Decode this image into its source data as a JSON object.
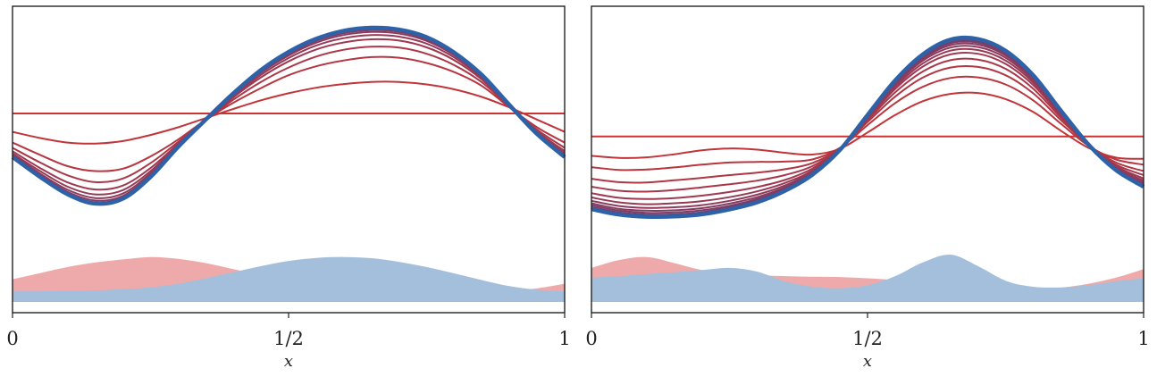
{
  "chart_data": [
    {
      "type": "line",
      "title": "",
      "xlabel": "x",
      "ylabel": "",
      "xlim": [
        0,
        1
      ],
      "ylim": [
        0,
        1
      ],
      "x_ticks": [
        "0",
        "1/2",
        "1"
      ],
      "grid": false,
      "legend": "none",
      "colors": {
        "start": "#cc3333",
        "end": "#2e62a8",
        "fill_start": "#eeaaaa",
        "fill_end": "#a3bfdb"
      },
      "x": [
        0,
        0.05,
        0.1,
        0.15,
        0.2,
        0.25,
        0.3,
        0.35,
        0.4,
        0.45,
        0.5,
        0.55,
        0.6,
        0.65,
        0.7,
        0.75,
        0.8,
        0.85,
        0.9,
        0.95,
        1
      ],
      "series": [
        {
          "values": [
            0.65,
            0.65,
            0.65,
            0.65,
            0.65,
            0.65,
            0.65,
            0.65,
            0.65,
            0.65,
            0.65,
            0.65,
            0.65,
            0.65,
            0.65,
            0.65,
            0.65,
            0.65,
            0.65,
            0.65,
            0.65
          ]
        },
        {
          "values": [
            0.59,
            0.57,
            0.555,
            0.552,
            0.56,
            0.58,
            0.605,
            0.635,
            0.665,
            0.693,
            0.716,
            0.734,
            0.746,
            0.753,
            0.753,
            0.745,
            0.729,
            0.704,
            0.67,
            0.63,
            0.59
          ]
        },
        {
          "values": [
            0.555,
            0.515,
            0.478,
            0.462,
            0.47,
            0.51,
            0.565,
            0.63,
            0.685,
            0.733,
            0.775,
            0.804,
            0.823,
            0.834,
            0.832,
            0.815,
            0.785,
            0.74,
            0.67,
            0.605,
            0.555
          ]
        },
        {
          "values": [
            0.538,
            0.49,
            0.448,
            0.426,
            0.438,
            0.488,
            0.557,
            0.627,
            0.695,
            0.753,
            0.8,
            0.836,
            0.858,
            0.868,
            0.865,
            0.845,
            0.808,
            0.752,
            0.672,
            0.597,
            0.538
          ]
        },
        {
          "values": [
            0.527,
            0.472,
            0.425,
            0.402,
            0.415,
            0.472,
            0.551,
            0.628,
            0.703,
            0.768,
            0.82,
            0.859,
            0.882,
            0.892,
            0.888,
            0.866,
            0.824,
            0.761,
            0.674,
            0.592,
            0.527
          ]
        },
        {
          "values": [
            0.52,
            0.462,
            0.411,
            0.386,
            0.4,
            0.462,
            0.548,
            0.628,
            0.707,
            0.776,
            0.831,
            0.872,
            0.896,
            0.906,
            0.901,
            0.878,
            0.833,
            0.766,
            0.675,
            0.589,
            0.52
          ]
        },
        {
          "values": [
            0.516,
            0.454,
            0.401,
            0.374,
            0.389,
            0.455,
            0.545,
            0.629,
            0.711,
            0.783,
            0.839,
            0.881,
            0.906,
            0.916,
            0.911,
            0.887,
            0.84,
            0.77,
            0.676,
            0.587,
            0.516
          ]
        },
        {
          "values": [
            0.512,
            0.449,
            0.394,
            0.366,
            0.381,
            0.45,
            0.543,
            0.629,
            0.713,
            0.787,
            0.844,
            0.887,
            0.912,
            0.922,
            0.917,
            0.892,
            0.844,
            0.773,
            0.677,
            0.585,
            0.512
          ]
        },
        {
          "values": [
            0.51,
            0.445,
            0.389,
            0.36,
            0.376,
            0.446,
            0.542,
            0.629,
            0.715,
            0.79,
            0.848,
            0.891,
            0.917,
            0.927,
            0.921,
            0.896,
            0.847,
            0.775,
            0.677,
            0.584,
            0.51
          ]
        },
        {
          "values": [
            0.508,
            0.443,
            0.386,
            0.356,
            0.372,
            0.443,
            0.541,
            0.63,
            0.716,
            0.792,
            0.851,
            0.894,
            0.92,
            0.93,
            0.924,
            0.899,
            0.849,
            0.776,
            0.678,
            0.583,
            0.508
          ]
        }
      ],
      "densities": [
        {
          "values": [
            0.075,
            0.095,
            0.115,
            0.13,
            0.14,
            0.148,
            0.142,
            0.128,
            0.108,
            0.088,
            0.07,
            0.055,
            0.043,
            0.035,
            0.03,
            0.027,
            0.027,
            0.03,
            0.036,
            0.045,
            0.06
          ]
        },
        {
          "values": [
            0.035,
            0.035,
            0.036,
            0.038,
            0.042,
            0.048,
            0.06,
            0.078,
            0.098,
            0.118,
            0.135,
            0.145,
            0.148,
            0.144,
            0.132,
            0.115,
            0.094,
            0.072,
            0.052,
            0.04,
            0.035
          ]
        }
      ]
    },
    {
      "type": "line",
      "title": "",
      "xlabel": "x",
      "ylabel": "",
      "xlim": [
        0,
        1
      ],
      "ylim": [
        0,
        1
      ],
      "x_ticks": [
        "0",
        "1/2",
        "1"
      ],
      "grid": false,
      "legend": "none",
      "colors": {
        "start": "#cc3333",
        "end": "#2e62a8",
        "fill_start": "#eeaaaa",
        "fill_end": "#a3bfdb"
      },
      "x": [
        0,
        0.05,
        0.1,
        0.15,
        0.2,
        0.25,
        0.3,
        0.35,
        0.4,
        0.45,
        0.5,
        0.55,
        0.6,
        0.65,
        0.7,
        0.75,
        0.8,
        0.85,
        0.9,
        0.95,
        1
      ],
      "series": [
        {
          "values": [
            0.575,
            0.575,
            0.575,
            0.575,
            0.575,
            0.575,
            0.575,
            0.575,
            0.575,
            0.575,
            0.575,
            0.575,
            0.575,
            0.575,
            0.575,
            0.575,
            0.575,
            0.575,
            0.575,
            0.575,
            0.575
          ]
        },
        {
          "values": [
            0.512,
            0.505,
            0.507,
            0.517,
            0.53,
            0.536,
            0.532,
            0.522,
            0.516,
            0.535,
            0.588,
            0.645,
            0.69,
            0.714,
            0.717,
            0.697,
            0.655,
            0.594,
            0.538,
            0.506,
            0.502
          ]
        },
        {
          "values": [
            0.475,
            0.466,
            0.467,
            0.474,
            0.483,
            0.49,
            0.492,
            0.493,
            0.5,
            0.538,
            0.612,
            0.684,
            0.737,
            0.766,
            0.768,
            0.745,
            0.693,
            0.617,
            0.545,
            0.5,
            0.483
          ]
        },
        {
          "values": [
            0.437,
            0.426,
            0.425,
            0.432,
            0.44,
            0.449,
            0.457,
            0.468,
            0.488,
            0.537,
            0.622,
            0.705,
            0.767,
            0.8,
            0.802,
            0.775,
            0.716,
            0.629,
            0.548,
            0.49,
            0.462
          ]
        },
        {
          "values": [
            0.411,
            0.398,
            0.395,
            0.4,
            0.409,
            0.419,
            0.431,
            0.449,
            0.478,
            0.536,
            0.628,
            0.719,
            0.787,
            0.824,
            0.826,
            0.796,
            0.731,
            0.637,
            0.548,
            0.483,
            0.449
          ]
        },
        {
          "values": [
            0.39,
            0.375,
            0.371,
            0.374,
            0.382,
            0.394,
            0.41,
            0.433,
            0.47,
            0.535,
            0.633,
            0.73,
            0.803,
            0.843,
            0.845,
            0.812,
            0.743,
            0.643,
            0.548,
            0.478,
            0.438
          ]
        },
        {
          "values": [
            0.376,
            0.36,
            0.354,
            0.357,
            0.364,
            0.377,
            0.396,
            0.423,
            0.464,
            0.534,
            0.637,
            0.737,
            0.813,
            0.855,
            0.857,
            0.823,
            0.751,
            0.647,
            0.549,
            0.475,
            0.431
          ]
        },
        {
          "values": [
            0.365,
            0.348,
            0.342,
            0.344,
            0.351,
            0.365,
            0.385,
            0.415,
            0.46,
            0.533,
            0.639,
            0.743,
            0.822,
            0.865,
            0.867,
            0.832,
            0.758,
            0.651,
            0.549,
            0.472,
            0.425
          ]
        },
        {
          "values": [
            0.357,
            0.339,
            0.333,
            0.334,
            0.341,
            0.356,
            0.377,
            0.409,
            0.457,
            0.533,
            0.641,
            0.748,
            0.828,
            0.873,
            0.875,
            0.839,
            0.763,
            0.654,
            0.549,
            0.47,
            0.421
          ]
        },
        {
          "values": [
            0.351,
            0.333,
            0.326,
            0.327,
            0.334,
            0.349,
            0.371,
            0.405,
            0.454,
            0.532,
            0.643,
            0.751,
            0.833,
            0.879,
            0.881,
            0.844,
            0.767,
            0.656,
            0.549,
            0.468,
            0.418
          ]
        },
        {
          "values": [
            0.345,
            0.327,
            0.32,
            0.321,
            0.328,
            0.344,
            0.366,
            0.401,
            0.452,
            0.532,
            0.644,
            0.754,
            0.837,
            0.884,
            0.886,
            0.849,
            0.77,
            0.658,
            0.549,
            0.467,
            0.415
          ]
        },
        {
          "values": [
            0.338,
            0.32,
            0.313,
            0.314,
            0.321,
            0.337,
            0.36,
            0.397,
            0.45,
            0.531,
            0.645,
            0.758,
            0.843,
            0.891,
            0.893,
            0.855,
            0.775,
            0.66,
            0.549,
            0.465,
            0.411
          ]
        }
      ],
      "densities": [
        {
          "values": [
            0.112,
            0.138,
            0.148,
            0.128,
            0.105,
            0.093,
            0.088,
            0.085,
            0.083,
            0.082,
            0.078,
            0.072,
            0.06,
            0.048,
            0.038,
            0.033,
            0.035,
            0.046,
            0.06,
            0.08,
            0.108
          ]
        },
        {
          "values": [
            0.08,
            0.085,
            0.092,
            0.098,
            0.105,
            0.112,
            0.1,
            0.068,
            0.05,
            0.045,
            0.055,
            0.085,
            0.13,
            0.156,
            0.118,
            0.07,
            0.05,
            0.048,
            0.055,
            0.068,
            0.078
          ]
        }
      ]
    }
  ]
}
